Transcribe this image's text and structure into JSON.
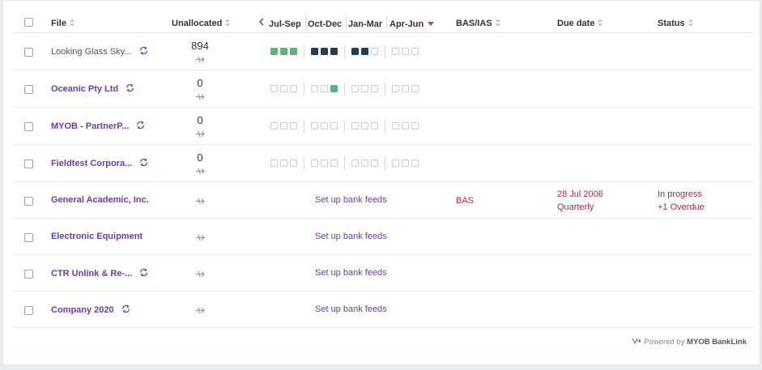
{
  "header": {
    "file": "File",
    "unallocated": "Unallocated",
    "quarters": [
      "Jul-Sep",
      "Oct-Dec",
      "Jan-Mar",
      "Apr-Jun"
    ],
    "bas_ias": "BAS/IAS",
    "due_date": "Due date",
    "status": "Status"
  },
  "rows": [
    {
      "name": "Looking Glass Sky...",
      "plain": true,
      "sync": true,
      "unallocated": "894",
      "quarters": [
        [
          "green",
          "green",
          "green"
        ],
        [
          "dark",
          "dark",
          "dark"
        ],
        [
          "dark",
          "dark",
          "empty"
        ],
        [
          "empty",
          "empty",
          "empty"
        ]
      ]
    },
    {
      "name": "Oceanic Pty Ltd",
      "plain": false,
      "sync": true,
      "unallocated": "0",
      "quarters": [
        [
          "empty",
          "empty",
          "empty"
        ],
        [
          "empty",
          "empty",
          "green"
        ],
        [
          "empty",
          "empty",
          "empty"
        ],
        [
          "empty",
          "empty",
          "empty"
        ]
      ]
    },
    {
      "name": "MYOB - PartnerP...",
      "plain": false,
      "sync": true,
      "unallocated": "0",
      "quarters": [
        [
          "empty",
          "empty",
          "empty"
        ],
        [
          "empty",
          "empty",
          "empty"
        ],
        [
          "empty",
          "empty",
          "empty"
        ],
        [
          "empty",
          "empty",
          "empty"
        ]
      ]
    },
    {
      "name": "Fieldtest Corpora...",
      "plain": false,
      "sync": true,
      "unallocated": "0",
      "quarters": [
        [
          "empty",
          "empty",
          "empty"
        ],
        [
          "empty",
          "empty",
          "empty"
        ],
        [
          "empty",
          "empty",
          "empty"
        ],
        [
          "empty",
          "empty",
          "empty"
        ]
      ]
    },
    {
      "name": "General Academic, Inc.",
      "plain": false,
      "sync": false,
      "bank_feed": "Set up bank feeds",
      "bas": "BAS",
      "due": "28 Jul 2006",
      "due_sub": "Quarterly",
      "status": "In progress",
      "status_sub": "+1 Overdue"
    },
    {
      "name": "Electronic Equipment",
      "plain": false,
      "sync": false,
      "bank_feed": "Set up bank feeds"
    },
    {
      "name": "CTR Unlink & Re-...",
      "plain": false,
      "sync": true,
      "bank_feed": "Set up bank feeds"
    },
    {
      "name": "Company 2020",
      "plain": false,
      "sync": true,
      "bank_feed": "Set up bank feeds"
    }
  ],
  "footer": {
    "powered_by": "Powered by",
    "brand": "MYOB BankLink"
  },
  "colors": {
    "accent": "#6b3fa0",
    "overdue": "#b0294a",
    "complete": "#5ab47b",
    "filed": "#2c3b4d"
  },
  "icons": {
    "sync": "sync-icon",
    "unallocated": "transfer-arrow-icon",
    "prev": "chevron-left-icon",
    "footer": "banklink-logo-icon"
  }
}
